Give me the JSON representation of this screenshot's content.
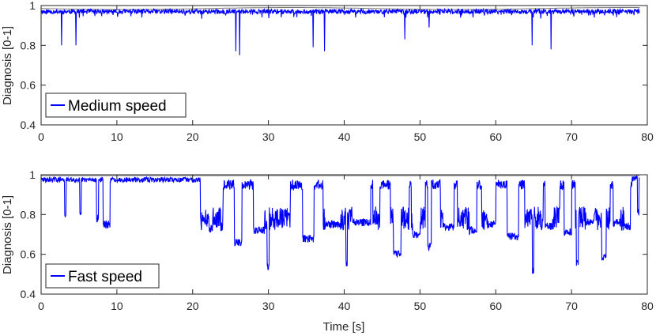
{
  "chart_data": [
    {
      "type": "line",
      "ylabel": "Diagnosis [0-1]",
      "xlabel": "",
      "xlim": [
        0,
        80
      ],
      "ylim": [
        0.4,
        1.0
      ],
      "xticks": [
        "0",
        "10",
        "20",
        "30",
        "40",
        "50",
        "60",
        "70",
        "80"
      ],
      "yticks": [
        "0.4",
        "0.6",
        "0.8",
        "1"
      ],
      "grid": false,
      "legend_position": "lower-left",
      "series": [
        {
          "name": "Medium speed",
          "color": "#0000ff",
          "baseline": 0.97,
          "noise": 0.012,
          "x_end": 79,
          "spikes": [
            {
              "x": 2.7,
              "y": 0.8
            },
            {
              "x": 4.6,
              "y": 0.8
            },
            {
              "x": 25.7,
              "y": 0.77
            },
            {
              "x": 26.2,
              "y": 0.75
            },
            {
              "x": 35.9,
              "y": 0.79
            },
            {
              "x": 37.4,
              "y": 0.77
            },
            {
              "x": 48.0,
              "y": 0.83
            },
            {
              "x": 51.2,
              "y": 0.89
            },
            {
              "x": 64.8,
              "y": 0.8
            },
            {
              "x": 67.3,
              "y": 0.78
            },
            {
              "x": 13.3,
              "y": 0.94
            },
            {
              "x": 19.0,
              "y": 0.95
            },
            {
              "x": 41.5,
              "y": 0.94
            },
            {
              "x": 57.0,
              "y": 0.94
            },
            {
              "x": 73.0,
              "y": 0.94
            }
          ],
          "shallow_dips": [
            {
              "x": 51.0,
              "y": 0.94
            },
            {
              "x": 58.5,
              "y": 0.95
            },
            {
              "x": 75.5,
              "y": 0.95
            }
          ]
        }
      ]
    },
    {
      "type": "line",
      "ylabel": "Diagnosis [0-1]",
      "xlabel": "Time [s]",
      "xlim": [
        0,
        80
      ],
      "ylim": [
        0.4,
        1.0
      ],
      "xticks": [
        "0",
        "10",
        "20",
        "30",
        "40",
        "50",
        "60",
        "70",
        "80"
      ],
      "yticks": [
        "0.4",
        "0.6",
        "0.8",
        "1"
      ],
      "grid": false,
      "legend_position": "lower-left",
      "series": [
        {
          "name": "Fast speed",
          "color": "#0000ff",
          "x_end": 79,
          "calm_segments": [
            {
              "x0": 0,
              "x1": 21,
              "level": 0.975
            },
            {
              "x0": 78,
              "x1": 79,
              "level": 0.98
            }
          ],
          "dropouts": [
            {
              "x0": 3.1,
              "x1": 3.3,
              "y": 0.76
            },
            {
              "x0": 5.1,
              "x1": 5.3,
              "y": 0.77
            },
            {
              "x0": 7.3,
              "x1": 7.6,
              "y": 0.76
            },
            {
              "x0": 8.2,
              "x1": 9.1,
              "y": 0.73
            },
            {
              "x0": 21.2,
              "x1": 21.6,
              "y": 0.76
            },
            {
              "x0": 22.2,
              "x1": 22.6,
              "y": 0.71
            },
            {
              "x0": 25.5,
              "x1": 26.5,
              "y": 0.64
            },
            {
              "x0": 28.0,
              "x1": 29.5,
              "y": 0.7
            },
            {
              "x0": 29.8,
              "x1": 30.1,
              "y": 0.51
            },
            {
              "x0": 34.5,
              "x1": 36.0,
              "y": 0.66
            },
            {
              "x0": 37.5,
              "x1": 39.5,
              "y": 0.73
            },
            {
              "x0": 40.2,
              "x1": 40.4,
              "y": 0.54
            },
            {
              "x0": 41.0,
              "x1": 43.5,
              "y": 0.74
            },
            {
              "x0": 46.5,
              "x1": 47.5,
              "y": 0.58
            },
            {
              "x0": 49.0,
              "x1": 50.0,
              "y": 0.68
            },
            {
              "x0": 51.0,
              "x1": 51.5,
              "y": 0.62
            },
            {
              "x0": 53.0,
              "x1": 54.5,
              "y": 0.72
            },
            {
              "x0": 56.5,
              "x1": 57.5,
              "y": 0.7
            },
            {
              "x0": 59.0,
              "x1": 60.0,
              "y": 0.73
            },
            {
              "x0": 61.5,
              "x1": 63.0,
              "y": 0.67
            },
            {
              "x0": 64.8,
              "x1": 65.0,
              "y": 0.5
            },
            {
              "x0": 66.5,
              "x1": 67.5,
              "y": 0.72
            },
            {
              "x0": 69.0,
              "x1": 70.0,
              "y": 0.69
            },
            {
              "x0": 70.6,
              "x1": 70.9,
              "y": 0.53
            },
            {
              "x0": 72.0,
              "x1": 73.0,
              "y": 0.74
            },
            {
              "x0": 74.0,
              "x1": 74.6,
              "y": 0.56
            },
            {
              "x0": 75.5,
              "x1": 76.5,
              "y": 0.74
            },
            {
              "x0": 77.0,
              "x1": 77.8,
              "y": 0.72
            },
            {
              "x0": 78.7,
              "x1": 78.9,
              "y": 0.79
            }
          ]
        }
      ]
    }
  ]
}
